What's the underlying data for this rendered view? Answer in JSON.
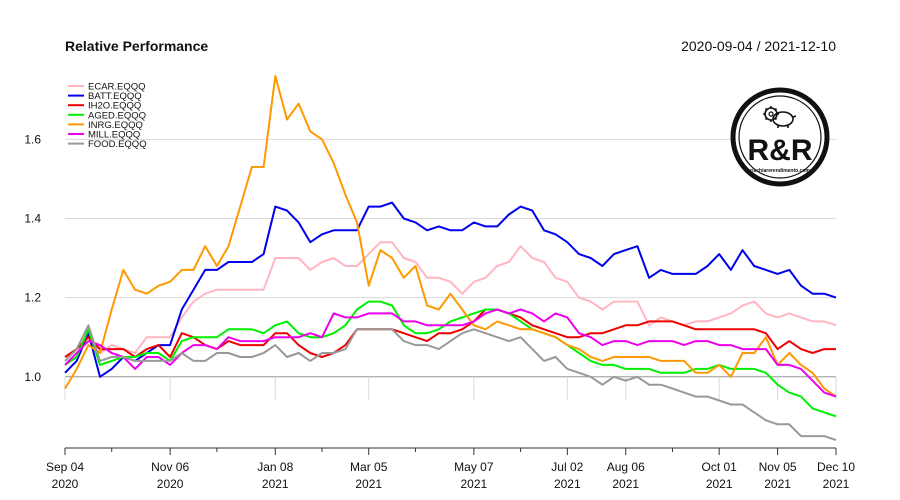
{
  "chart_data": {
    "type": "line",
    "title": "Relative Performance",
    "date_range": "2020-09-04 / 2021-12-10",
    "xlabel": "",
    "ylabel": "",
    "x": [
      "2020-09-04",
      "2020-09-11",
      "2020-09-18",
      "2020-09-25",
      "2020-10-02",
      "2020-10-09",
      "2020-10-16",
      "2020-10-23",
      "2020-10-30",
      "2020-11-06",
      "2020-11-13",
      "2020-11-20",
      "2020-11-27",
      "2020-12-04",
      "2020-12-11",
      "2020-12-18",
      "2020-12-25",
      "2021-01-01",
      "2021-01-08",
      "2021-01-15",
      "2021-01-22",
      "2021-01-29",
      "2021-02-05",
      "2021-02-12",
      "2021-02-19",
      "2021-02-26",
      "2021-03-05",
      "2021-03-12",
      "2021-03-19",
      "2021-03-26",
      "2021-04-02",
      "2021-04-09",
      "2021-04-16",
      "2021-04-23",
      "2021-04-30",
      "2021-05-07",
      "2021-05-14",
      "2021-05-21",
      "2021-05-28",
      "2021-06-04",
      "2021-06-11",
      "2021-06-18",
      "2021-06-25",
      "2021-07-02",
      "2021-07-09",
      "2021-07-16",
      "2021-07-23",
      "2021-07-30",
      "2021-08-06",
      "2021-08-13",
      "2021-08-20",
      "2021-08-27",
      "2021-09-03",
      "2021-09-10",
      "2021-09-17",
      "2021-09-24",
      "2021-10-01",
      "2021-10-08",
      "2021-10-15",
      "2021-10-22",
      "2021-10-29",
      "2021-11-05",
      "2021-11-12",
      "2021-11-19",
      "2021-11-26",
      "2021-12-03",
      "2021-12-10"
    ],
    "x_ticks": [
      {
        "date": "2020-09-04",
        "line1": "Sep 04",
        "line2": "2020"
      },
      {
        "date": "2020-11-06",
        "line1": "Nov 06",
        "line2": "2020"
      },
      {
        "date": "2021-01-08",
        "line1": "Jan 08",
        "line2": "2021"
      },
      {
        "date": "2021-03-05",
        "line1": "Mar 05",
        "line2": "2021"
      },
      {
        "date": "2021-05-07",
        "line1": "May 07",
        "line2": "2021"
      },
      {
        "date": "2021-07-02",
        "line1": "Jul 02",
        "line2": "2021"
      },
      {
        "date": "2021-08-06",
        "line1": "Aug 06",
        "line2": "2021"
      },
      {
        "date": "2021-10-01",
        "line1": "Oct 01",
        "line2": "2021"
      },
      {
        "date": "2021-11-05",
        "line1": "Nov 05",
        "line2": "2021"
      },
      {
        "date": "2021-12-10",
        "line1": "Dec 10",
        "line2": "2021"
      }
    ],
    "minor_ticks": [
      "2020-10-02",
      "2020-12-04",
      "2021-02-05",
      "2021-04-02",
      "2021-06-04",
      "2021-09-03"
    ],
    "ylim": [
      0.82,
      1.76
    ],
    "y_ticks": [
      1.0,
      1.2,
      1.4,
      1.6
    ],
    "y_tick_labels": [
      "1.0",
      "1.2",
      "1.4",
      "1.6"
    ],
    "reference_line": 1.0,
    "grid": "horizontal",
    "legend_position": "top-left",
    "series": [
      {
        "name": "ECAR.EQQQ",
        "color": "#ffb6c1",
        "values": [
          1.04,
          1.07,
          1.11,
          1.06,
          1.08,
          1.07,
          1.06,
          1.1,
          1.1,
          1.1,
          1.15,
          1.19,
          1.21,
          1.22,
          1.22,
          1.22,
          1.22,
          1.22,
          1.3,
          1.3,
          1.3,
          1.27,
          1.29,
          1.3,
          1.28,
          1.28,
          1.31,
          1.34,
          1.34,
          1.3,
          1.29,
          1.25,
          1.25,
          1.24,
          1.21,
          1.24,
          1.25,
          1.28,
          1.29,
          1.33,
          1.3,
          1.29,
          1.25,
          1.24,
          1.2,
          1.19,
          1.17,
          1.19,
          1.19,
          1.19,
          1.13,
          1.15,
          1.14,
          1.13,
          1.14,
          1.14,
          1.15,
          1.16,
          1.18,
          1.19,
          1.16,
          1.15,
          1.16,
          1.15,
          1.14,
          1.14,
          1.13
        ]
      },
      {
        "name": "BATT.EQQQ",
        "color": "#0000ee",
        "values": [
          1.01,
          1.04,
          1.11,
          1.0,
          1.02,
          1.05,
          1.04,
          1.06,
          1.08,
          1.08,
          1.17,
          1.22,
          1.27,
          1.27,
          1.29,
          1.29,
          1.29,
          1.31,
          1.43,
          1.42,
          1.39,
          1.34,
          1.36,
          1.37,
          1.37,
          1.37,
          1.43,
          1.43,
          1.44,
          1.4,
          1.39,
          1.37,
          1.38,
          1.37,
          1.37,
          1.39,
          1.38,
          1.38,
          1.41,
          1.43,
          1.42,
          1.37,
          1.36,
          1.34,
          1.31,
          1.3,
          1.28,
          1.31,
          1.32,
          1.33,
          1.25,
          1.27,
          1.26,
          1.26,
          1.26,
          1.28,
          1.31,
          1.27,
          1.32,
          1.28,
          1.27,
          1.26,
          1.27,
          1.23,
          1.21,
          1.21,
          1.2
        ]
      },
      {
        "name": "IH2O.EQQQ",
        "color": "#ee0000",
        "values": [
          1.05,
          1.07,
          1.1,
          1.07,
          1.07,
          1.07,
          1.05,
          1.07,
          1.08,
          1.05,
          1.11,
          1.1,
          1.08,
          1.07,
          1.09,
          1.08,
          1.08,
          1.08,
          1.11,
          1.11,
          1.08,
          1.06,
          1.05,
          1.06,
          1.08,
          1.12,
          1.12,
          1.12,
          1.12,
          1.11,
          1.1,
          1.09,
          1.11,
          1.11,
          1.12,
          1.14,
          1.17,
          1.17,
          1.16,
          1.15,
          1.13,
          1.12,
          1.11,
          1.1,
          1.1,
          1.11,
          1.11,
          1.12,
          1.13,
          1.13,
          1.14,
          1.14,
          1.14,
          1.13,
          1.12,
          1.12,
          1.12,
          1.12,
          1.12,
          1.12,
          1.11,
          1.07,
          1.09,
          1.07,
          1.06,
          1.07,
          1.07
        ]
      },
      {
        "name": "AGED.EQQQ",
        "color": "#00ee00",
        "values": [
          1.03,
          1.05,
          1.12,
          1.03,
          1.04,
          1.05,
          1.05,
          1.06,
          1.06,
          1.04,
          1.09,
          1.1,
          1.1,
          1.1,
          1.12,
          1.12,
          1.12,
          1.11,
          1.13,
          1.14,
          1.11,
          1.1,
          1.1,
          1.11,
          1.13,
          1.17,
          1.19,
          1.19,
          1.18,
          1.13,
          1.11,
          1.11,
          1.12,
          1.14,
          1.15,
          1.16,
          1.17,
          1.17,
          1.16,
          1.14,
          1.12,
          1.11,
          1.1,
          1.08,
          1.06,
          1.04,
          1.03,
          1.03,
          1.02,
          1.02,
          1.02,
          1.01,
          1.01,
          1.01,
          1.02,
          1.02,
          1.03,
          1.02,
          1.02,
          1.02,
          1.01,
          0.98,
          0.96,
          0.95,
          0.92,
          0.91,
          0.9
        ]
      },
      {
        "name": "INRG.EQQQ",
        "color": "#ff9900",
        "values": [
          0.97,
          1.02,
          1.08,
          1.06,
          1.17,
          1.27,
          1.22,
          1.21,
          1.23,
          1.24,
          1.27,
          1.27,
          1.33,
          1.28,
          1.33,
          1.43,
          1.53,
          1.53,
          1.76,
          1.65,
          1.69,
          1.62,
          1.6,
          1.54,
          1.46,
          1.39,
          1.23,
          1.32,
          1.3,
          1.25,
          1.28,
          1.18,
          1.17,
          1.21,
          1.17,
          1.13,
          1.12,
          1.14,
          1.13,
          1.12,
          1.12,
          1.11,
          1.1,
          1.08,
          1.07,
          1.05,
          1.04,
          1.05,
          1.05,
          1.05,
          1.05,
          1.04,
          1.04,
          1.04,
          1.01,
          1.01,
          1.03,
          1.0,
          1.06,
          1.06,
          1.1,
          1.03,
          1.06,
          1.03,
          1.01,
          0.97,
          0.95
        ]
      },
      {
        "name": "MILL.EQQQ",
        "color": "#ee00ee",
        "values": [
          1.03,
          1.06,
          1.09,
          1.08,
          1.06,
          1.05,
          1.02,
          1.05,
          1.05,
          1.03,
          1.06,
          1.08,
          1.08,
          1.07,
          1.1,
          1.09,
          1.09,
          1.09,
          1.1,
          1.1,
          1.1,
          1.11,
          1.1,
          1.16,
          1.15,
          1.15,
          1.16,
          1.16,
          1.16,
          1.14,
          1.14,
          1.13,
          1.13,
          1.13,
          1.13,
          1.14,
          1.16,
          1.17,
          1.16,
          1.17,
          1.16,
          1.14,
          1.16,
          1.15,
          1.11,
          1.1,
          1.08,
          1.09,
          1.09,
          1.08,
          1.09,
          1.09,
          1.09,
          1.08,
          1.09,
          1.09,
          1.08,
          1.08,
          1.07,
          1.07,
          1.07,
          1.03,
          1.03,
          1.02,
          0.99,
          0.96,
          0.95
        ]
      },
      {
        "name": "FOOD.EQQQ",
        "color": "#999999",
        "values": [
          1.04,
          1.07,
          1.13,
          1.04,
          1.05,
          1.05,
          1.04,
          1.04,
          1.04,
          1.04,
          1.06,
          1.04,
          1.04,
          1.06,
          1.06,
          1.05,
          1.05,
          1.06,
          1.08,
          1.05,
          1.06,
          1.04,
          1.06,
          1.06,
          1.07,
          1.12,
          1.12,
          1.12,
          1.12,
          1.09,
          1.08,
          1.08,
          1.07,
          1.09,
          1.11,
          1.12,
          1.11,
          1.1,
          1.09,
          1.1,
          1.07,
          1.04,
          1.05,
          1.02,
          1.01,
          1.0,
          0.98,
          1.0,
          0.99,
          1.0,
          0.98,
          0.98,
          0.97,
          0.96,
          0.95,
          0.95,
          0.94,
          0.93,
          0.93,
          0.91,
          0.89,
          0.88,
          0.88,
          0.85,
          0.85,
          0.85,
          0.84
        ]
      }
    ]
  },
  "logo": {
    "text": "R&R",
    "subtext": "rischiarerendimento.com",
    "icon": "gear-piggy-bank-icon"
  }
}
